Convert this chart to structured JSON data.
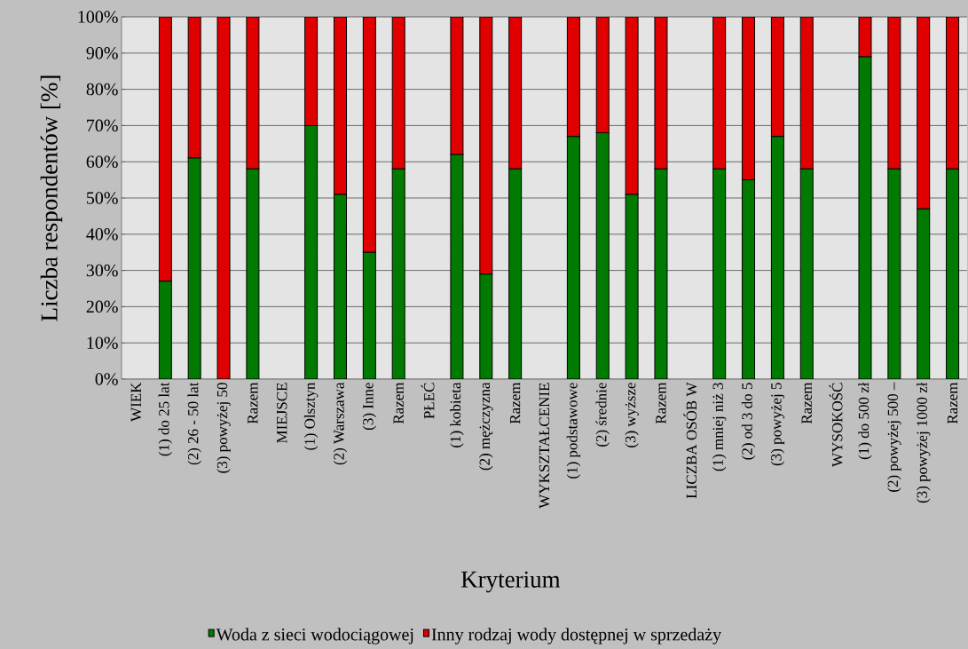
{
  "chart_data": {
    "type": "bar",
    "stacked": true,
    "xlabel": "Kryterium",
    "ylabel": "Liczba respondentów [%]",
    "categories": [
      "WIEK",
      "(1) do 25 lat",
      "(2) 26 - 50 lat",
      "(3) powyżej 50",
      "Razem",
      "MIEJSCE",
      "(1) Olsztyn",
      "(2) Warszawa",
      "(3) Inne",
      "Razem",
      "PŁEĆ",
      "(1) kobieta",
      "(2) mężczyzna",
      "Razem",
      "WYKSZTAŁCENIE",
      "(1) podstawowe",
      "(2) średnie",
      "(3) wyższe",
      "Razem",
      "LICZBA OSÓB W",
      "(1) mniej niż 3",
      "(2) od 3 do 5",
      "(3) powyżej 5",
      "Razem",
      "WYSOKOŚĆ",
      "(1) do 500 zł",
      "(2) powyżej 500 –",
      "(3) powyżej 1000 zł",
      "Razem"
    ],
    "series": [
      {
        "name": "Woda z sieci wodociągowej",
        "color": "#007a00",
        "values": [
          null,
          27,
          61,
          0,
          58,
          null,
          70,
          51,
          35,
          58,
          null,
          62,
          29,
          58,
          null,
          67,
          68,
          51,
          58,
          null,
          58,
          55,
          67,
          58,
          null,
          89,
          58,
          47,
          58
        ]
      },
      {
        "name": "Inny rodzaj wody dostępnej w sprzedaży",
        "color": "#e00000",
        "values": [
          null,
          73,
          39,
          100,
          42,
          null,
          30,
          49,
          65,
          42,
          null,
          38,
          71,
          42,
          null,
          33,
          32,
          49,
          42,
          null,
          42,
          45,
          33,
          42,
          null,
          11,
          42,
          53,
          42
        ]
      }
    ],
    "ylim": [
      0,
      100
    ],
    "yticks": [
      {
        "value": 0,
        "label": "0%"
      },
      {
        "value": 10,
        "label": "10%"
      },
      {
        "value": 20,
        "label": "20%"
      },
      {
        "value": 30,
        "label": "30%"
      },
      {
        "value": 40,
        "label": "40%"
      },
      {
        "value": 50,
        "label": "50%"
      },
      {
        "value": 60,
        "label": "60%"
      },
      {
        "value": 70,
        "label": "70%"
      },
      {
        "value": 80,
        "label": "80%"
      },
      {
        "value": 90,
        "label": "90%"
      },
      {
        "value": 100,
        "label": "100%"
      }
    ],
    "grid": "y",
    "legend": "bottom"
  }
}
